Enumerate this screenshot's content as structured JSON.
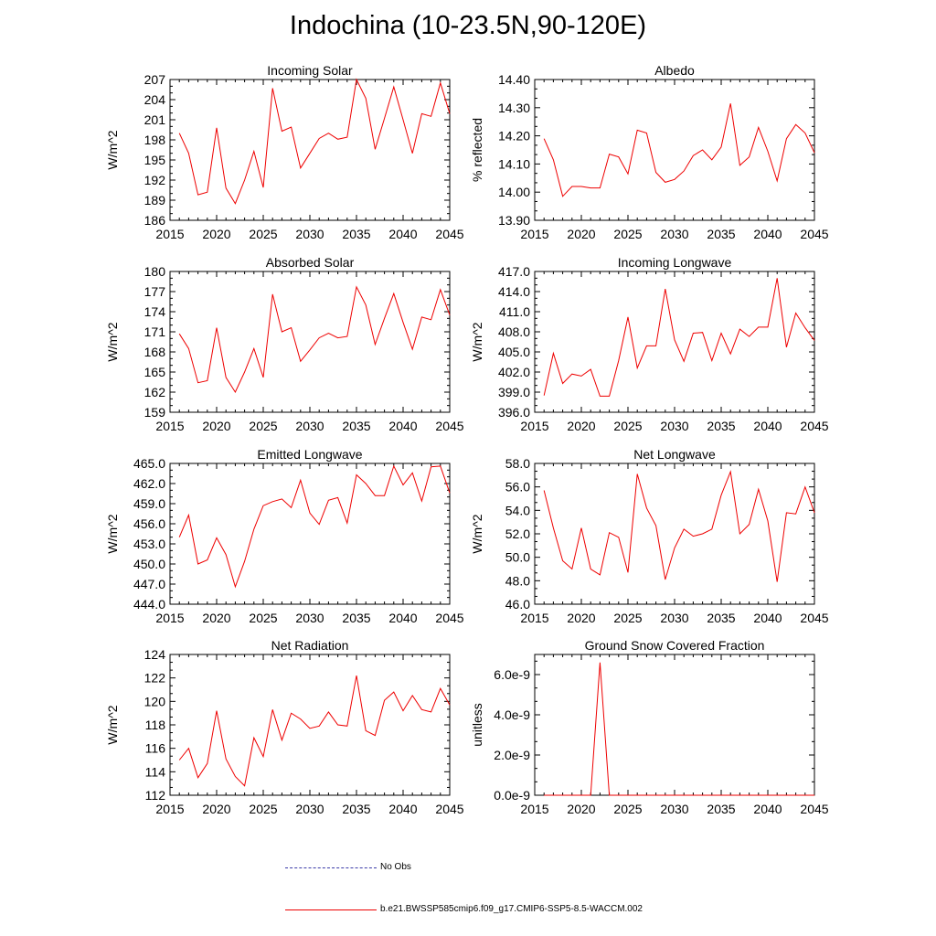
{
  "figure": {
    "title": "Indochina (10-23.5N,90-120E)",
    "legend": [
      {
        "label": "No Obs",
        "color": "#3a3aa8",
        "style": "dashed"
      },
      {
        "label": "b.e21.BWSSP585cmip6.f09_g17.CMIP6-SSP5-8.5-WACCM.002",
        "color": "#ee0000",
        "style": "solid"
      }
    ]
  },
  "chart_data": [
    {
      "type": "line",
      "title": "Incoming Solar",
      "ylabel": "W/m^2",
      "xlim": [
        2015,
        2045
      ],
      "ylim": [
        186,
        207
      ],
      "yticks": [
        "186",
        "189",
        "192",
        "195",
        "198",
        "201",
        "204",
        "207"
      ],
      "ytick_values": [
        186,
        189,
        192,
        195,
        198,
        201,
        204,
        207
      ],
      "xticks": [
        "2015",
        "2020",
        "2025",
        "2030",
        "2035",
        "2040",
        "2045"
      ],
      "series": [
        {
          "name": "b.e21.BWSSP585cmip6.f09_g17.CMIP6-SSP5-8.5-WACCM.002",
          "x": [
            2016,
            2017,
            2018,
            2019,
            2020,
            2021,
            2022,
            2023,
            2024,
            2025,
            2026,
            2027,
            2028,
            2029,
            2030,
            2031,
            2032,
            2033,
            2034,
            2035,
            2036,
            2037,
            2038,
            2039,
            2040,
            2041,
            2042,
            2043,
            2044,
            2045
          ],
          "values": [
            199.0,
            196.0,
            189.8,
            190.2,
            199.8,
            190.8,
            188.5,
            192.0,
            196.3,
            190.9,
            205.7,
            199.3,
            199.9,
            193.8,
            196.0,
            198.2,
            199.0,
            198.1,
            198.4,
            207.0,
            204.2,
            196.6,
            201.2,
            205.9,
            201.0,
            196.0,
            201.9,
            201.5,
            206.5,
            201.9
          ]
        }
      ]
    },
    {
      "type": "line",
      "title": "Albedo",
      "ylabel": "% reflected",
      "xlim": [
        2015,
        2045
      ],
      "ylim": [
        13.9,
        14.4
      ],
      "yticks": [
        "13.90",
        "14.00",
        "14.10",
        "14.20",
        "14.30",
        "14.40"
      ],
      "ytick_values": [
        13.9,
        14.0,
        14.1,
        14.2,
        14.3,
        14.4
      ],
      "xticks": [
        "2015",
        "2020",
        "2025",
        "2030",
        "2035",
        "2040",
        "2045"
      ],
      "series": [
        {
          "name": "b.e21.BWSSP585cmip6.f09_g17.CMIP6-SSP5-8.5-WACCM.002",
          "x": [
            2016,
            2017,
            2018,
            2019,
            2020,
            2021,
            2022,
            2023,
            2024,
            2025,
            2026,
            2027,
            2028,
            2029,
            2030,
            2031,
            2032,
            2033,
            2034,
            2035,
            2036,
            2037,
            2038,
            2039,
            2040,
            2041,
            2042,
            2043,
            2044,
            2045
          ],
          "values": [
            14.19,
            14.115,
            13.985,
            14.02,
            14.02,
            14.015,
            14.015,
            14.135,
            14.125,
            14.065,
            14.22,
            14.21,
            14.07,
            14.035,
            14.045,
            14.075,
            14.13,
            14.15,
            14.115,
            14.16,
            14.315,
            14.095,
            14.125,
            14.23,
            14.145,
            14.04,
            14.19,
            14.24,
            14.21,
            14.14
          ]
        }
      ]
    },
    {
      "type": "line",
      "title": "Absorbed Solar",
      "ylabel": "W/m^2",
      "xlim": [
        2015,
        2045
      ],
      "ylim": [
        159,
        180
      ],
      "yticks": [
        "159",
        "162",
        "165",
        "168",
        "171",
        "174",
        "177",
        "180"
      ],
      "ytick_values": [
        159,
        162,
        165,
        168,
        171,
        174,
        177,
        180
      ],
      "xticks": [
        "2015",
        "2020",
        "2025",
        "2030",
        "2035",
        "2040",
        "2045"
      ],
      "series": [
        {
          "name": "b.e21.BWSSP585cmip6.f09_g17.CMIP6-SSP5-8.5-WACCM.002",
          "x": [
            2016,
            2017,
            2018,
            2019,
            2020,
            2021,
            2022,
            2023,
            2024,
            2025,
            2026,
            2027,
            2028,
            2029,
            2030,
            2031,
            2032,
            2033,
            2034,
            2035,
            2036,
            2037,
            2038,
            2039,
            2040,
            2041,
            2042,
            2043,
            2044,
            2045
          ],
          "values": [
            170.7,
            168.5,
            163.4,
            163.7,
            171.6,
            164.2,
            162.0,
            165.0,
            168.5,
            164.2,
            176.6,
            171.0,
            171.6,
            166.6,
            168.3,
            170.1,
            170.8,
            170.1,
            170.3,
            177.7,
            175.0,
            169.1,
            173.0,
            176.7,
            172.4,
            168.4,
            173.2,
            172.8,
            177.3,
            173.5
          ]
        }
      ]
    },
    {
      "type": "line",
      "title": "Incoming Longwave",
      "ylabel": "W/m^2",
      "xlim": [
        2015,
        2045
      ],
      "ylim": [
        396,
        417
      ],
      "yticks": [
        "396.0",
        "399.0",
        "402.0",
        "405.0",
        "408.0",
        "411.0",
        "414.0",
        "417.0"
      ],
      "ytick_values": [
        396,
        399,
        402,
        405,
        408,
        411,
        414,
        417
      ],
      "xticks": [
        "2015",
        "2020",
        "2025",
        "2030",
        "2035",
        "2040",
        "2045"
      ],
      "series": [
        {
          "name": "b.e21.BWSSP585cmip6.f09_g17.CMIP6-SSP5-8.5-WACCM.002",
          "x": [
            2016,
            2017,
            2018,
            2019,
            2020,
            2021,
            2022,
            2023,
            2024,
            2025,
            2026,
            2027,
            2028,
            2029,
            2030,
            2031,
            2032,
            2033,
            2034,
            2035,
            2036,
            2037,
            2038,
            2039,
            2040,
            2041,
            2042,
            2043,
            2044,
            2045
          ],
          "values": [
            398.5,
            404.8,
            400.3,
            401.7,
            401.4,
            402.4,
            398.4,
            398.4,
            403.7,
            410.2,
            402.6,
            405.9,
            405.9,
            414.4,
            406.8,
            403.6,
            407.8,
            407.9,
            403.7,
            407.8,
            404.7,
            408.4,
            407.3,
            408.7,
            408.7,
            416.0,
            405.7,
            410.8,
            408.6,
            406.7
          ]
        }
      ]
    },
    {
      "type": "line",
      "title": "Emitted Longwave",
      "ylabel": "W/m^2",
      "xlim": [
        2015,
        2045
      ],
      "ylim": [
        444,
        465
      ],
      "yticks": [
        "444.0",
        "447.0",
        "450.0",
        "453.0",
        "456.0",
        "459.0",
        "462.0",
        "465.0"
      ],
      "ytick_values": [
        444,
        447,
        450,
        453,
        456,
        459,
        462,
        465
      ],
      "xticks": [
        "2015",
        "2020",
        "2025",
        "2030",
        "2035",
        "2040",
        "2045"
      ],
      "series": [
        {
          "name": "b.e21.BWSSP585cmip6.f09_g17.CMIP6-SSP5-8.5-WACCM.002",
          "x": [
            2016,
            2017,
            2018,
            2019,
            2020,
            2021,
            2022,
            2023,
            2024,
            2025,
            2026,
            2027,
            2028,
            2029,
            2030,
            2031,
            2032,
            2033,
            2034,
            2035,
            2036,
            2037,
            2038,
            2039,
            2040,
            2041,
            2042,
            2043,
            2044,
            2045
          ],
          "values": [
            454.0,
            457.3,
            450.0,
            450.6,
            453.9,
            451.4,
            446.6,
            450.4,
            455.2,
            458.7,
            459.3,
            459.7,
            458.4,
            462.5,
            457.6,
            455.9,
            459.5,
            459.9,
            456.1,
            463.3,
            462.0,
            460.2,
            460.2,
            464.6,
            461.8,
            463.6,
            459.4,
            464.5,
            464.6,
            460.6
          ]
        }
      ]
    },
    {
      "type": "line",
      "title": "Net Longwave",
      "ylabel": "W/m^2",
      "xlim": [
        2015,
        2045
      ],
      "ylim": [
        46,
        58
      ],
      "yticks": [
        "46.0",
        "48.0",
        "50.0",
        "52.0",
        "54.0",
        "56.0",
        "58.0"
      ],
      "ytick_values": [
        46,
        48,
        50,
        52,
        54,
        56,
        58
      ],
      "xticks": [
        "2015",
        "2020",
        "2025",
        "2030",
        "2035",
        "2040",
        "2045"
      ],
      "series": [
        {
          "name": "b.e21.BWSSP585cmip6.f09_g17.CMIP6-SSP5-8.5-WACCM.002",
          "x": [
            2016,
            2017,
            2018,
            2019,
            2020,
            2021,
            2022,
            2023,
            2024,
            2025,
            2026,
            2027,
            2028,
            2029,
            2030,
            2031,
            2032,
            2033,
            2034,
            2035,
            2036,
            2037,
            2038,
            2039,
            2040,
            2041,
            2042,
            2043,
            2044,
            2045
          ],
          "values": [
            55.7,
            52.5,
            49.7,
            49.0,
            52.5,
            49.0,
            48.5,
            52.1,
            51.7,
            48.7,
            57.1,
            54.2,
            52.7,
            48.1,
            50.8,
            52.4,
            51.8,
            52.0,
            52.4,
            55.3,
            57.3,
            52.0,
            52.8,
            55.8,
            53.1,
            47.9,
            53.8,
            53.7,
            56.0,
            53.8
          ]
        }
      ]
    },
    {
      "type": "line",
      "title": "Net Radiation",
      "ylabel": "W/m^2",
      "xlim": [
        2015,
        2045
      ],
      "ylim": [
        112,
        124
      ],
      "yticks": [
        "112",
        "114",
        "116",
        "118",
        "120",
        "122",
        "124"
      ],
      "ytick_values": [
        112,
        114,
        116,
        118,
        120,
        122,
        124
      ],
      "xticks": [
        "2015",
        "2020",
        "2025",
        "2030",
        "2035",
        "2040",
        "2045"
      ],
      "series": [
        {
          "name": "b.e21.BWSSP585cmip6.f09_g17.CMIP6-SSP5-8.5-WACCM.002",
          "x": [
            2016,
            2017,
            2018,
            2019,
            2020,
            2021,
            2022,
            2023,
            2024,
            2025,
            2026,
            2027,
            2028,
            2029,
            2030,
            2031,
            2032,
            2033,
            2034,
            2035,
            2036,
            2037,
            2038,
            2039,
            2040,
            2041,
            2042,
            2043,
            2044,
            2045
          ],
          "values": [
            115.0,
            116.0,
            113.5,
            114.7,
            119.2,
            115.1,
            113.6,
            112.8,
            116.9,
            115.3,
            119.3,
            116.7,
            119.0,
            118.5,
            117.7,
            117.9,
            119.1,
            118.0,
            117.9,
            122.2,
            117.5,
            117.1,
            120.1,
            120.8,
            119.2,
            120.5,
            119.3,
            119.1,
            121.1,
            119.7
          ]
        }
      ]
    },
    {
      "type": "line",
      "title": "Ground Snow Covered Fraction",
      "ylabel": "unitless",
      "xlim": [
        2015,
        2045
      ],
      "ylim": [
        0,
        7e-09
      ],
      "yticks": [
        "0.0e-9",
        "2.0e-9",
        "4.0e-9",
        "6.0e-9"
      ],
      "ytick_values": [
        0,
        2e-09,
        4e-09,
        6e-09
      ],
      "xticks": [
        "2015",
        "2020",
        "2025",
        "2030",
        "2035",
        "2040",
        "2045"
      ],
      "series": [
        {
          "name": "b.e21.BWSSP585cmip6.f09_g17.CMIP6-SSP5-8.5-WACCM.002",
          "x": [
            2016,
            2017,
            2018,
            2019,
            2020,
            2021,
            2022,
            2023,
            2024,
            2025,
            2026,
            2027,
            2028,
            2029,
            2030,
            2031,
            2032,
            2033,
            2034,
            2035,
            2036,
            2037,
            2038,
            2039,
            2040,
            2041,
            2042,
            2043,
            2044,
            2045
          ],
          "values": [
            0,
            0,
            0,
            0,
            0,
            0,
            6.6e-09,
            0,
            0,
            0,
            0,
            0,
            0,
            0,
            0,
            0,
            0,
            0,
            0,
            0,
            0,
            0,
            0,
            0,
            0,
            0,
            0,
            0,
            0,
            0
          ]
        }
      ]
    }
  ]
}
